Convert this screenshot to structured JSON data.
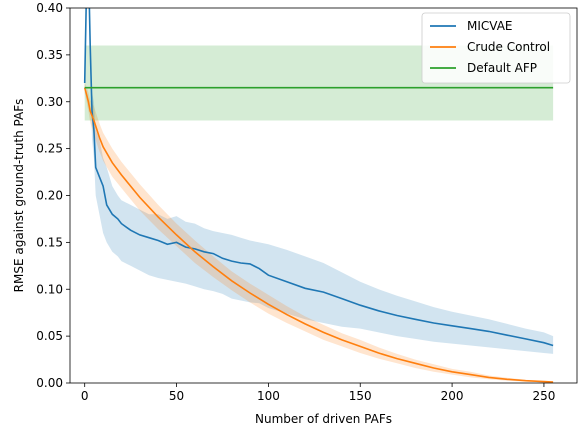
{
  "chart_data": {
    "type": "line",
    "xlabel": "Number of driven PAFs",
    "ylabel": "RMSE against ground-truth PAFs",
    "xlim": [
      -8,
      268
    ],
    "ylim": [
      0,
      0.4
    ],
    "x_ticks": [
      "0",
      "50",
      "100",
      "150",
      "200",
      "250"
    ],
    "y_ticks": [
      "0.00",
      "0.05",
      "0.10",
      "0.15",
      "0.20",
      "0.25",
      "0.30",
      "0.35",
      "0.40"
    ],
    "legend_position": "top-right",
    "grid": false,
    "series": [
      {
        "name": "MICVAE",
        "color": "#1f77b4",
        "x": [
          0,
          1,
          2,
          3,
          4,
          5,
          6,
          8,
          10,
          12,
          15,
          18,
          20,
          25,
          30,
          35,
          40,
          45,
          50,
          55,
          60,
          65,
          70,
          75,
          80,
          85,
          90,
          95,
          100,
          110,
          120,
          130,
          140,
          150,
          160,
          170,
          180,
          190,
          200,
          210,
          220,
          230,
          240,
          250,
          255
        ],
        "y": [
          0.32,
          0.42,
          0.45,
          0.36,
          0.29,
          0.27,
          0.23,
          0.22,
          0.21,
          0.19,
          0.18,
          0.175,
          0.17,
          0.163,
          0.158,
          0.155,
          0.152,
          0.148,
          0.15,
          0.145,
          0.143,
          0.14,
          0.138,
          0.133,
          0.13,
          0.128,
          0.127,
          0.122,
          0.115,
          0.108,
          0.101,
          0.097,
          0.09,
          0.083,
          0.077,
          0.072,
          0.068,
          0.064,
          0.061,
          0.058,
          0.055,
          0.051,
          0.047,
          0.043,
          0.04
        ],
        "lower": [
          0.3,
          0.4,
          0.43,
          0.34,
          0.26,
          0.24,
          0.2,
          0.18,
          0.16,
          0.15,
          0.14,
          0.135,
          0.13,
          0.125,
          0.12,
          0.115,
          0.112,
          0.11,
          0.108,
          0.106,
          0.103,
          0.1,
          0.098,
          0.095,
          0.09,
          0.088,
          0.086,
          0.085,
          0.08,
          0.074,
          0.068,
          0.064,
          0.06,
          0.058,
          0.054,
          0.05,
          0.047,
          0.044,
          0.042,
          0.04,
          0.038,
          0.036,
          0.034,
          0.032,
          0.031
        ],
        "upper": [
          0.34,
          0.44,
          0.47,
          0.38,
          0.31,
          0.3,
          0.27,
          0.26,
          0.24,
          0.23,
          0.21,
          0.2,
          0.195,
          0.19,
          0.185,
          0.18,
          0.18,
          0.175,
          0.178,
          0.172,
          0.17,
          0.165,
          0.162,
          0.16,
          0.158,
          0.155,
          0.152,
          0.15,
          0.148,
          0.142,
          0.135,
          0.128,
          0.118,
          0.108,
          0.1,
          0.093,
          0.087,
          0.081,
          0.076,
          0.072,
          0.068,
          0.063,
          0.058,
          0.054,
          0.05
        ]
      },
      {
        "name": "Crude Control",
        "color": "#ff7f0e",
        "x": [
          0,
          1,
          2,
          3,
          5,
          8,
          10,
          15,
          20,
          25,
          30,
          40,
          50,
          60,
          70,
          80,
          90,
          100,
          110,
          120,
          130,
          140,
          150,
          160,
          170,
          180,
          190,
          200,
          210,
          220,
          230,
          240,
          250,
          255
        ],
        "y": [
          0.315,
          0.308,
          0.3,
          0.29,
          0.28,
          0.262,
          0.252,
          0.235,
          0.222,
          0.21,
          0.198,
          0.177,
          0.158,
          0.14,
          0.124,
          0.109,
          0.096,
          0.084,
          0.073,
          0.063,
          0.054,
          0.046,
          0.039,
          0.032,
          0.026,
          0.021,
          0.016,
          0.012,
          0.009,
          0.006,
          0.004,
          0.0025,
          0.0015,
          0.001
        ],
        "lower": [
          0.31,
          0.3,
          0.29,
          0.278,
          0.265,
          0.247,
          0.237,
          0.22,
          0.208,
          0.196,
          0.184,
          0.164,
          0.146,
          0.128,
          0.113,
          0.099,
          0.086,
          0.074,
          0.064,
          0.055,
          0.046,
          0.039,
          0.032,
          0.026,
          0.021,
          0.016,
          0.012,
          0.009,
          0.006,
          0.004,
          0.0025,
          0.0015,
          0.0008,
          0.0005
        ],
        "upper": [
          0.32,
          0.316,
          0.31,
          0.302,
          0.295,
          0.277,
          0.267,
          0.25,
          0.236,
          0.224,
          0.212,
          0.19,
          0.17,
          0.152,
          0.135,
          0.119,
          0.106,
          0.094,
          0.082,
          0.071,
          0.062,
          0.053,
          0.046,
          0.038,
          0.031,
          0.025,
          0.02,
          0.015,
          0.012,
          0.008,
          0.0055,
          0.0035,
          0.002,
          0.0015
        ]
      },
      {
        "name": "Default AFP",
        "color": "#2ca02c",
        "x": [
          0,
          255
        ],
        "y": [
          0.315,
          0.315
        ],
        "lower": [
          0.28,
          0.28
        ],
        "upper": [
          0.36,
          0.36
        ]
      }
    ]
  }
}
